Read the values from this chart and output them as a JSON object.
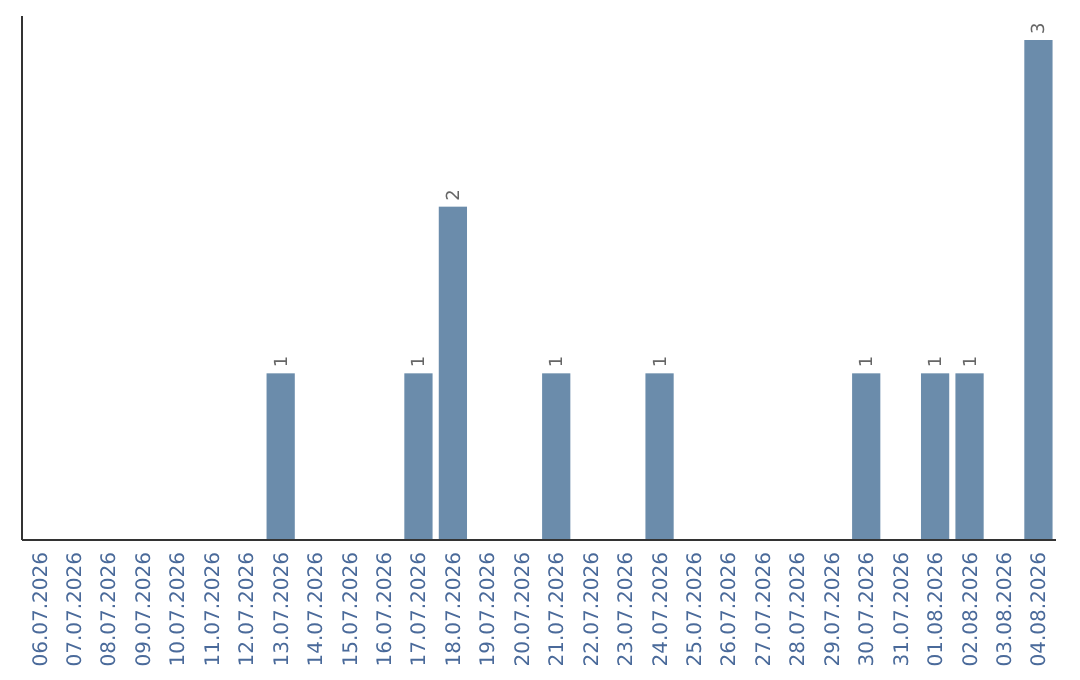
{
  "chart_data": {
    "type": "bar",
    "categories": [
      "06.07.2026",
      "07.07.2026",
      "08.07.2026",
      "09.07.2026",
      "10.07.2026",
      "11.07.2026",
      "12.07.2026",
      "13.07.2026",
      "14.07.2026",
      "15.07.2026",
      "16.07.2026",
      "17.07.2026",
      "18.07.2026",
      "19.07.2026",
      "20.07.2026",
      "21.07.2026",
      "22.07.2026",
      "23.07.2026",
      "24.07.2026",
      "25.07.2026",
      "26.07.2026",
      "27.07.2026",
      "28.07.2026",
      "29.07.2026",
      "30.07.2026",
      "31.07.2026",
      "01.08.2026",
      "02.08.2026",
      "03.08.2026",
      "04.08.2026"
    ],
    "values": [
      0,
      0,
      0,
      0,
      0,
      0,
      0,
      1,
      0,
      0,
      0,
      1,
      2,
      0,
      0,
      1,
      0,
      0,
      1,
      0,
      0,
      0,
      0,
      0,
      1,
      0,
      1,
      1,
      0,
      3
    ],
    "value_labels": [
      null,
      null,
      null,
      null,
      null,
      null,
      null,
      "1",
      null,
      null,
      null,
      "1",
      "2",
      null,
      null,
      "1",
      null,
      null,
      "1",
      null,
      null,
      null,
      null,
      null,
      "1",
      null,
      "1",
      "1",
      null,
      "3"
    ],
    "color": "#6b8cab"
  }
}
